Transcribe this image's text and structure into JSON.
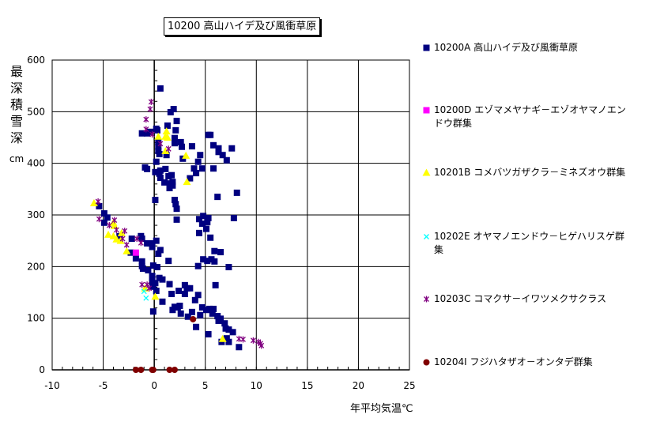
{
  "chart_data": {
    "type": "scatter",
    "title": "10200 高山ハイデ及び風衝草原",
    "xlabel": "年平均気温℃",
    "ylabel": "最深積雪深",
    "yunit": "cm",
    "xlim": [
      -10,
      25
    ],
    "ylim": [
      0,
      600
    ],
    "xticks": [
      -10,
      -5,
      0,
      5,
      10,
      15,
      20,
      25
    ],
    "yticks": [
      0,
      100,
      200,
      300,
      400,
      500,
      600
    ],
    "grid": true,
    "legend_position": "right",
    "series": [
      {
        "name": "10200A 高山ハイデ及び風衝草原",
        "marker": "square",
        "color": "#000080",
        "points": [
          [
            0.6,
            545
          ],
          [
            1.9,
            505
          ],
          [
            1.6,
            499
          ],
          [
            2.2,
            482
          ],
          [
            1.3,
            473
          ],
          [
            2.1,
            464
          ],
          [
            0.2,
            467
          ],
          [
            0.3,
            464
          ],
          [
            -1.2,
            458
          ],
          [
            -0.7,
            458
          ],
          [
            -0.4,
            461
          ],
          [
            2.0,
            449
          ],
          [
            2.6,
            441
          ],
          [
            2.0,
            439
          ],
          [
            0.4,
            441
          ],
          [
            2.7,
            432
          ],
          [
            3.7,
            433
          ],
          [
            0.4,
            432
          ],
          [
            0.5,
            418
          ],
          [
            0.4,
            424
          ],
          [
            1.2,
            416
          ],
          [
            4.5,
            416
          ],
          [
            2.8,
            409
          ],
          [
            4.3,
            403
          ],
          [
            0.2,
            403
          ],
          [
            -0.9,
            392
          ],
          [
            -0.7,
            389
          ],
          [
            1.1,
            389
          ],
          [
            0.6,
            386
          ],
          [
            0.1,
            383
          ],
          [
            0.5,
            380
          ],
          [
            1.7,
            377
          ],
          [
            1.4,
            375
          ],
          [
            1.8,
            364
          ],
          [
            1.6,
            361
          ],
          [
            1.8,
            357
          ],
          [
            0.6,
            372
          ],
          [
            1.0,
            363
          ],
          [
            1.5,
            352
          ],
          [
            3.5,
            371
          ],
          [
            3.9,
            390
          ],
          [
            4.7,
            390
          ],
          [
            5.8,
            390
          ],
          [
            4.1,
            381
          ],
          [
            5.3,
            455
          ],
          [
            5.5,
            455
          ],
          [
            5.8,
            435
          ],
          [
            6.3,
            429
          ],
          [
            6.3,
            422
          ],
          [
            6.7,
            416
          ],
          [
            7.6,
            429
          ],
          [
            7.1,
            406
          ],
          [
            8.1,
            343
          ],
          [
            6.2,
            335
          ],
          [
            0.1,
            329
          ],
          [
            2.0,
            329
          ],
          [
            2.1,
            321
          ],
          [
            2.2,
            312
          ],
          [
            -5.4,
            317
          ],
          [
            -4.9,
            303
          ],
          [
            -4.6,
            295
          ],
          [
            -4.9,
            285
          ],
          [
            2.2,
            291
          ],
          [
            4.8,
            298
          ],
          [
            5.3,
            294
          ],
          [
            4.4,
            292
          ],
          [
            7.8,
            294
          ],
          [
            4.7,
            283
          ],
          [
            5.2,
            286
          ],
          [
            5.1,
            273
          ],
          [
            4.4,
            265
          ],
          [
            5.5,
            256
          ],
          [
            5.9,
            230
          ],
          [
            6.5,
            228
          ],
          [
            4.8,
            214
          ],
          [
            5.2,
            211
          ],
          [
            5.6,
            214
          ],
          [
            5.9,
            210
          ],
          [
            4.3,
            201
          ],
          [
            7.3,
            199
          ],
          [
            -1.3,
            259
          ],
          [
            -1.2,
            254
          ],
          [
            -2.2,
            254
          ],
          [
            -3.4,
            259
          ],
          [
            -0.7,
            245
          ],
          [
            -0.4,
            245
          ],
          [
            -0.2,
            238
          ],
          [
            0.2,
            250
          ],
          [
            0.6,
            232
          ],
          [
            0.4,
            225
          ],
          [
            -2.3,
            227
          ],
          [
            -1.8,
            216
          ],
          [
            -1.2,
            210
          ],
          [
            -1.2,
            201
          ],
          [
            -1.1,
            196
          ],
          [
            -0.6,
            193
          ],
          [
            -0.1,
            202
          ],
          [
            0.3,
            199
          ],
          [
            1.4,
            211
          ],
          [
            -0.2,
            182
          ],
          [
            0.5,
            178
          ],
          [
            0.8,
            175
          ],
          [
            -0.2,
            170
          ],
          [
            0.1,
            168
          ],
          [
            -0.1,
            161
          ],
          [
            0.2,
            153
          ],
          [
            1.5,
            166
          ],
          [
            3.0,
            164
          ],
          [
            3.2,
            158
          ],
          [
            3.5,
            158
          ],
          [
            2.4,
            153
          ],
          [
            3.0,
            147
          ],
          [
            1.7,
            147
          ],
          [
            4.3,
            145
          ],
          [
            6.0,
            164
          ],
          [
            4.0,
            135
          ],
          [
            0.8,
            132
          ],
          [
            2.0,
            122
          ],
          [
            2.5,
            124
          ],
          [
            1.8,
            116
          ],
          [
            2.3,
            121
          ],
          [
            -0.1,
            113
          ],
          [
            2.6,
            109
          ],
          [
            4.7,
            121
          ],
          [
            5.1,
            116
          ],
          [
            5.4,
            118
          ],
          [
            5.8,
            118
          ],
          [
            5.7,
            109
          ],
          [
            3.7,
            112
          ],
          [
            4.5,
            106
          ],
          [
            3.3,
            103
          ],
          [
            6.2,
            104
          ],
          [
            6.3,
            95
          ],
          [
            6.5,
            99
          ],
          [
            6.9,
            90
          ],
          [
            4.1,
            83
          ],
          [
            7.0,
            80
          ],
          [
            7.3,
            78
          ],
          [
            7.7,
            73
          ],
          [
            5.3,
            69
          ],
          [
            7.1,
            61
          ],
          [
            7.3,
            54
          ],
          [
            6.6,
            54
          ],
          [
            8.3,
            44
          ]
        ]
      },
      {
        "name": "10200D エゾマメヤナギ－エゾオヤマノエンドウ群集",
        "marker": "square",
        "color": "#ff00ff",
        "points": [
          [
            -1.8,
            227
          ]
        ]
      },
      {
        "name": "10201B コメバツガザクラ－ミネズオウ群集",
        "marker": "triangle",
        "color": "#ffff00",
        "points": [
          [
            1.2,
            462
          ],
          [
            0.4,
            452
          ],
          [
            1.1,
            452
          ],
          [
            1.3,
            450
          ],
          [
            1.1,
            424
          ],
          [
            3.1,
            415
          ],
          [
            3.2,
            364
          ],
          [
            -5.9,
            323
          ],
          [
            -4.0,
            285
          ],
          [
            -3.9,
            279
          ],
          [
            -4.5,
            262
          ],
          [
            -4.0,
            259
          ],
          [
            -3.7,
            253
          ],
          [
            -3.3,
            250
          ],
          [
            -3.2,
            265
          ],
          [
            -2.7,
            230
          ],
          [
            -0.9,
            158
          ],
          [
            0.1,
            142
          ],
          [
            6.7,
            60
          ]
        ]
      },
      {
        "name": "10202E オヤマノエンドウ－ヒゲハリスゲ群集",
        "marker": "x",
        "color": "#00ffff",
        "points": [
          [
            -1.0,
            152
          ],
          [
            -0.8,
            139
          ]
        ]
      },
      {
        "name": "10203C コマクサ－イワツメクサクラス",
        "marker": "star",
        "color": "#800080",
        "points": [
          [
            -0.3,
            519
          ],
          [
            -0.4,
            505
          ],
          [
            -0.8,
            485
          ],
          [
            -0.8,
            466
          ],
          [
            -0.2,
            456
          ],
          [
            0.6,
            438
          ],
          [
            1.4,
            428
          ],
          [
            -5.5,
            326
          ],
          [
            -5.4,
            292
          ],
          [
            -3.9,
            290
          ],
          [
            -4.4,
            280
          ],
          [
            -3.7,
            271
          ],
          [
            -2.9,
            269
          ],
          [
            -3.1,
            254
          ],
          [
            -1.7,
            254
          ],
          [
            -1.3,
            246
          ],
          [
            -2.7,
            242
          ],
          [
            -1.2,
            165
          ],
          [
            -0.7,
            165
          ],
          [
            -0.5,
            158
          ],
          [
            8.3,
            60
          ],
          [
            8.7,
            59
          ],
          [
            9.7,
            57
          ],
          [
            10.2,
            54
          ],
          [
            10.4,
            51
          ],
          [
            10.5,
            47
          ]
        ]
      },
      {
        "name": "10204I フジハタザオ－オンタデ群集",
        "marker": "circle",
        "color": "#800000",
        "points": [
          [
            3.8,
            98
          ],
          [
            -1.8,
            0
          ],
          [
            -1.3,
            0
          ],
          [
            -0.2,
            0
          ],
          [
            -0.1,
            0
          ],
          [
            1.5,
            0
          ],
          [
            2.0,
            0
          ]
        ]
      }
    ]
  }
}
